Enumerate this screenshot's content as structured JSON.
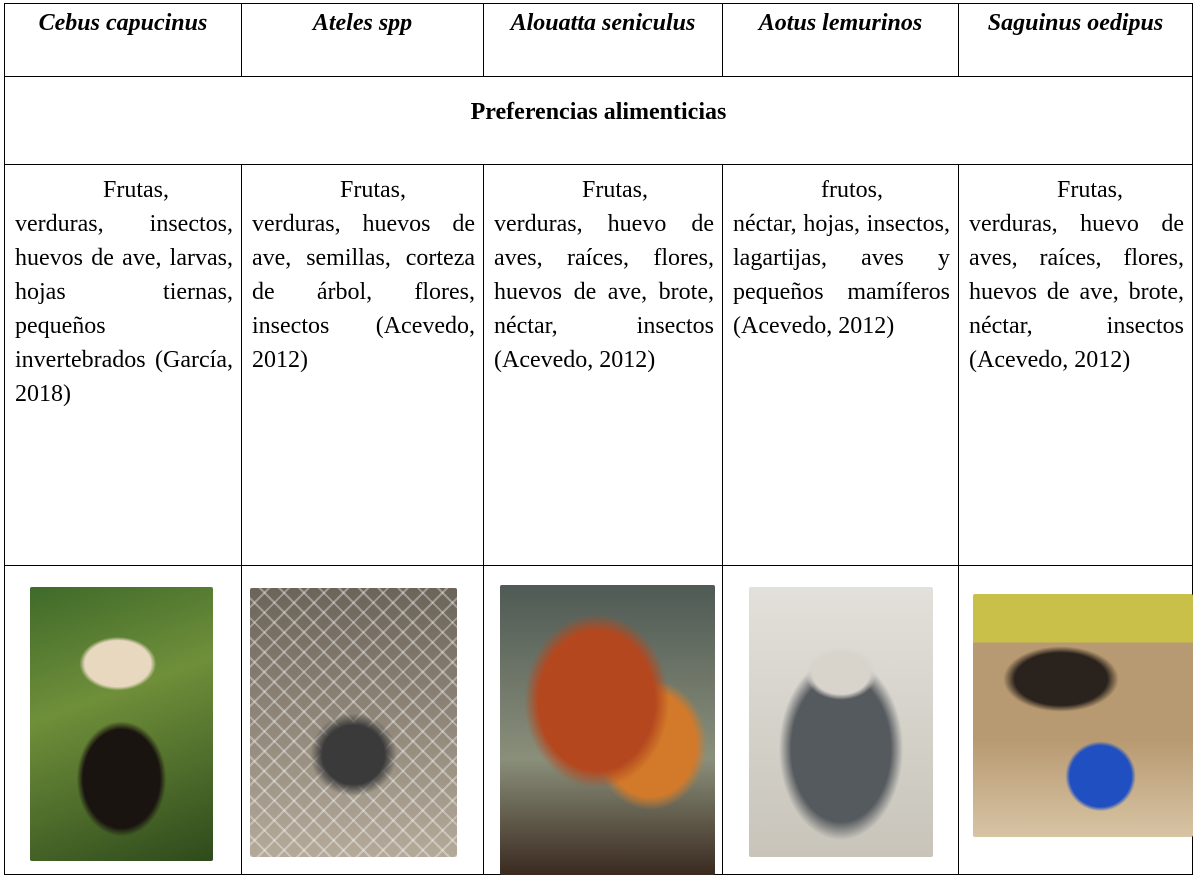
{
  "table": {
    "headers": [
      "Cebus capucinus",
      "Ateles spp",
      "Alouatta seniculus",
      "Aotus lemurinos",
      "Saguinus oedipus"
    ],
    "section": "Preferencias alimenticias",
    "diets": [
      "Frutas, verduras, insectos, huevos de ave, larvas, hojas tiernas, pequeños invertebrados (García, 2018)",
      "Frutas, verduras, huevos de ave, semillas, corteza de árbol, flores, insectos (Acevedo, 2012)",
      "Frutas, verduras, huevo de aves, raíces, flores, huevos de ave, brote, néctar, insectos (Acevedo, 2012)",
      "frutos, néctar, hojas, insectos, lagartijas, aves y pequeños mamíferos (Acevedo, 2012)",
      "Frutas, verduras, huevo de aves, raíces, flores, huevos de ave, brote, néctar, insectos (Acevedo, 2012)"
    ]
  }
}
